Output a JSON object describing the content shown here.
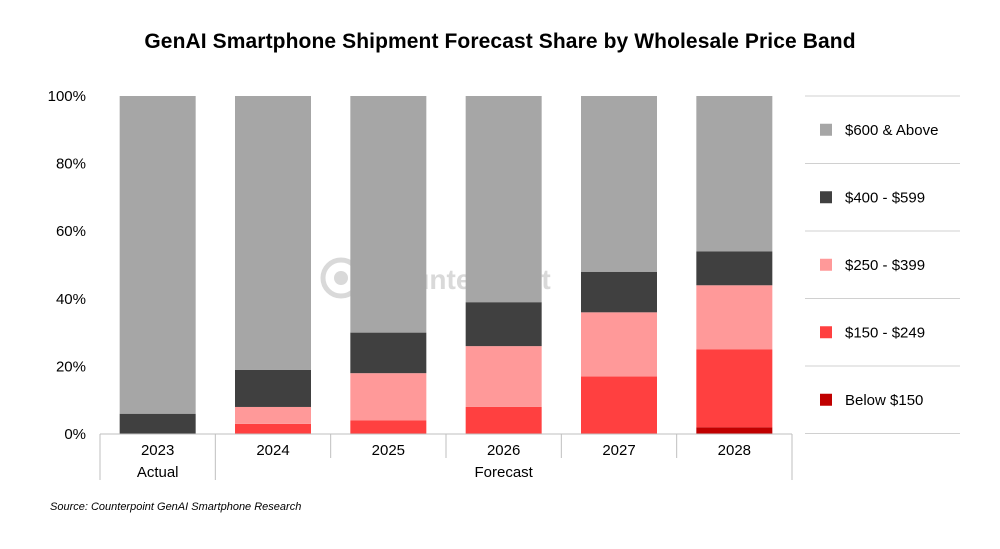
{
  "title": "GenAI Smartphone Shipment Forecast Share by Wholesale Price Band",
  "source": "Source: Counterpoint GenAI Smartphone Research",
  "watermark": "Counterpoint",
  "chart_data": {
    "type": "bar",
    "stacked": true,
    "categories": [
      "2023",
      "2024",
      "2025",
      "2026",
      "2027",
      "2028"
    ],
    "category_groups": [
      {
        "label": "Actual",
        "categories": [
          "2023"
        ]
      },
      {
        "label": "Forecast",
        "categories": [
          "2024",
          "2025",
          "2026",
          "2027",
          "2028"
        ]
      }
    ],
    "series": [
      {
        "name": "Below $150",
        "color": "#c00000",
        "values": [
          0,
          0,
          0,
          0,
          0,
          2
        ]
      },
      {
        "name": "$150 - $249",
        "color": "#ff4040",
        "values": [
          0,
          3,
          4,
          8,
          17,
          23
        ]
      },
      {
        "name": "$250 - $399",
        "color": "#ff9999",
        "values": [
          0,
          5,
          14,
          18,
          19,
          19
        ]
      },
      {
        "name": "$400 - $599",
        "color": "#404040",
        "values": [
          6,
          11,
          12,
          13,
          12,
          10
        ]
      },
      {
        "name": "$600 & Above",
        "color": "#a6a6a6",
        "values": [
          94,
          81,
          70,
          61,
          52,
          46
        ]
      }
    ],
    "ylim": [
      0,
      100
    ],
    "y_ticks": [
      "0%",
      "20%",
      "40%",
      "60%",
      "80%",
      "100%"
    ],
    "y_tick_values": [
      0,
      20,
      40,
      60,
      80,
      100
    ],
    "legend_position": "right",
    "grid": false
  }
}
